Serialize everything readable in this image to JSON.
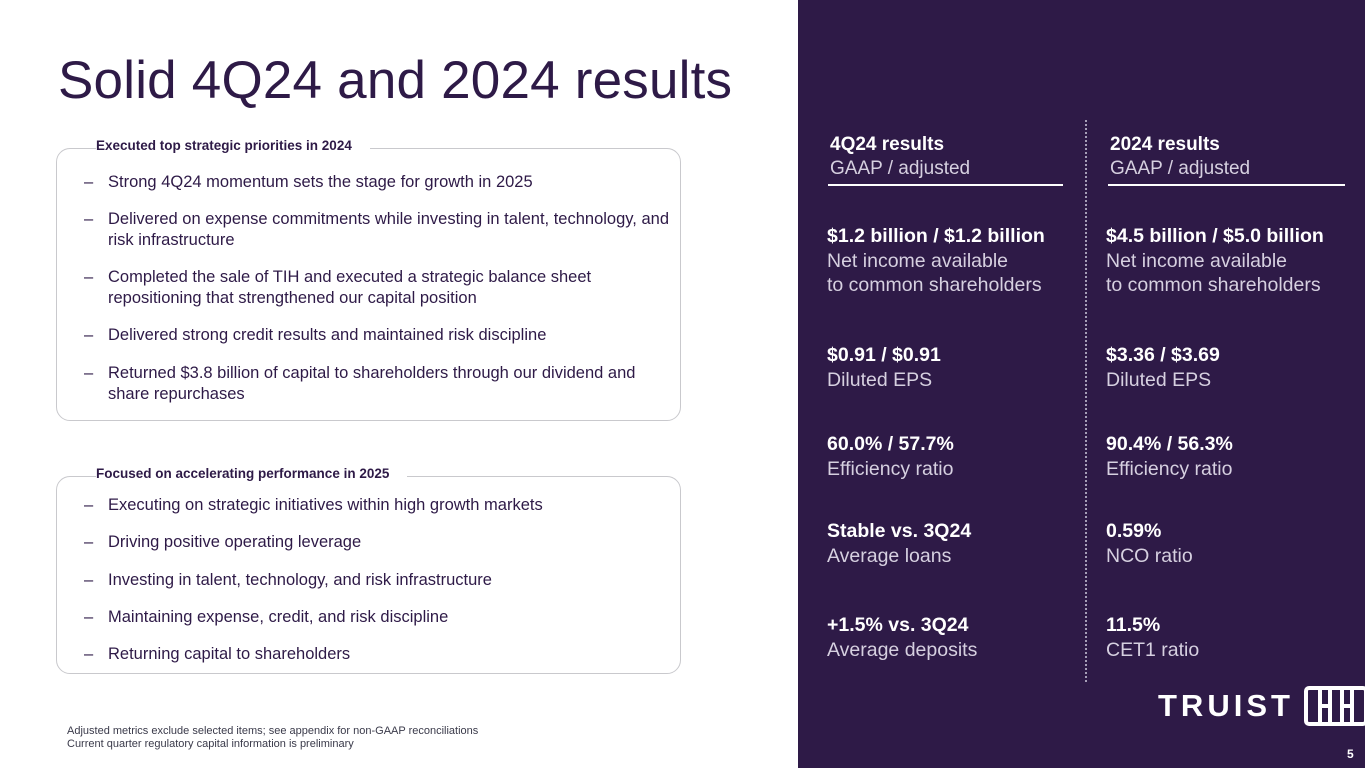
{
  "title": "Solid 4Q24 and 2024 results",
  "section1": {
    "label": "Executed top strategic priorities in 2024",
    "bullets": [
      "Strong 4Q24 momentum sets the stage for growth in 2025",
      "Delivered on expense commitments while investing in talent, technology, and risk infrastructure",
      "Completed the sale of TIH and executed a strategic balance sheet repositioning that strengthened our capital position",
      "Delivered strong credit results and maintained risk discipline",
      "Returned $3.8 billion of capital to shareholders through our dividend and share repurchases"
    ]
  },
  "section2": {
    "label": "Focused on accelerating performance in 2025",
    "bullets": [
      "Executing on strategic initiatives within high growth markets",
      "Driving positive operating leverage",
      "Investing in talent, technology, and risk infrastructure",
      "Maintaining expense, credit, and risk discipline",
      "Returning capital to shareholders"
    ]
  },
  "bullet_marker": "–",
  "footnotes": [
    "Adjusted metrics exclude selected items; see appendix for non-GAAP reconciliations",
    "Current quarter regulatory capital information is preliminary"
  ],
  "q4": {
    "heading": "4Q24 results",
    "subheading": "GAAP / adjusted",
    "metrics": [
      {
        "value": "$1.2 billion / $1.2 billion",
        "label": "Net income available",
        "label2": "to common shareholders"
      },
      {
        "value": "$0.91 / $0.91",
        "label": "Diluted EPS"
      },
      {
        "value": "60.0% / 57.7%",
        "label": "Efficiency ratio"
      },
      {
        "value": "Stable vs. 3Q24",
        "label": "Average loans"
      },
      {
        "value": "+1.5% vs. 3Q24",
        "label": "Average deposits"
      }
    ]
  },
  "fy": {
    "heading": "2024 results",
    "subheading": "GAAP / adjusted",
    "metrics": [
      {
        "value": "$4.5 billion / $5.0 billion",
        "label": "Net income available",
        "label2": "to common shareholders"
      },
      {
        "value": "$3.36 / $3.69",
        "label": "Diluted EPS"
      },
      {
        "value": "90.4% / 56.3%",
        "label": "Efficiency ratio"
      },
      {
        "value": "0.59%",
        "label": "NCO ratio"
      },
      {
        "value": "11.5%",
        "label": "CET1 ratio"
      }
    ]
  },
  "logo": {
    "wordmark": "TRUIST",
    "icon": "truist-hh-icon"
  },
  "page_number": "5",
  "colors": {
    "brand_purple": "#2e1a47",
    "panel_text_muted": "#d6d0e0",
    "border_gray": "#c9c9cd"
  }
}
